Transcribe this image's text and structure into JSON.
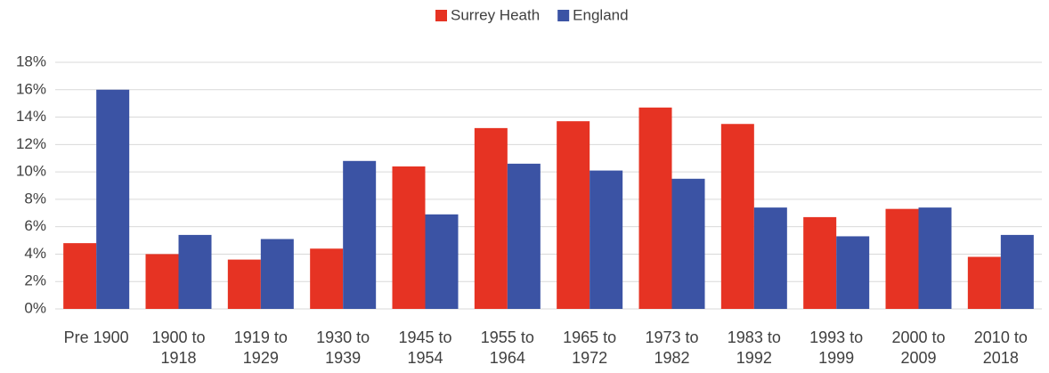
{
  "chart_data": {
    "type": "bar",
    "categories": [
      "Pre 1900",
      "1900 to 1918",
      "1919 to 1929",
      "1930 to 1939",
      "1945 to 1954",
      "1955 to 1964",
      "1965 to 1972",
      "1973 to 1982",
      "1983 to 1992",
      "1993 to 1999",
      "2000 to 2009",
      "2010 to 2018"
    ],
    "series": [
      {
        "name": "Surrey Heath",
        "color": "#e63323",
        "values": [
          4.8,
          4.0,
          3.6,
          4.4,
          10.4,
          13.2,
          13.7,
          14.7,
          13.5,
          6.7,
          7.3,
          3.8
        ]
      },
      {
        "name": "England",
        "color": "#3b53a4",
        "values": [
          16.0,
          5.4,
          5.1,
          10.8,
          6.9,
          10.6,
          10.1,
          9.5,
          7.4,
          5.3,
          7.4,
          5.4
        ]
      }
    ],
    "ylim": [
      0,
      18
    ],
    "yticks": [
      {
        "value": 0,
        "label": "0%"
      },
      {
        "value": 2,
        "label": "2%"
      },
      {
        "value": 4,
        "label": "4%"
      },
      {
        "value": 6,
        "label": "6%"
      },
      {
        "value": 8,
        "label": "8%"
      },
      {
        "value": 10,
        "label": "10%"
      },
      {
        "value": 12,
        "label": "12%"
      },
      {
        "value": 14,
        "label": "14%"
      },
      {
        "value": 16,
        "label": "16%"
      },
      {
        "value": 18,
        "label": "18%"
      }
    ],
    "grid": true,
    "legend": "top"
  }
}
